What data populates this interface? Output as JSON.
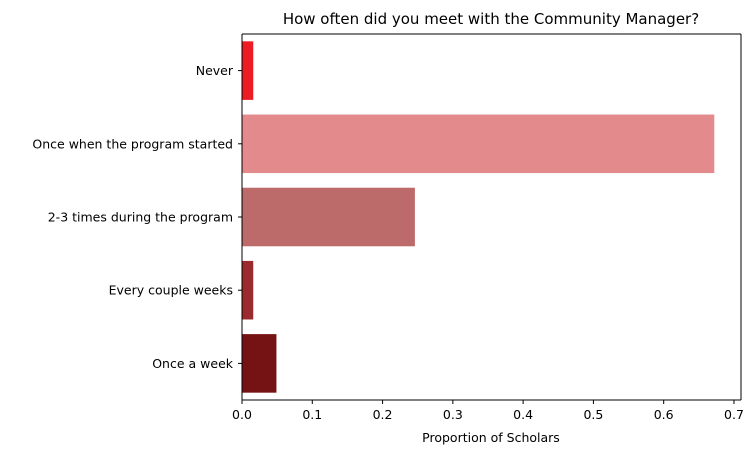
{
  "chart_data": {
    "type": "bar",
    "orientation": "horizontal",
    "title": "How often did you meet with the Community Manager?",
    "xlabel": "Proportion of Scholars",
    "ylabel": "",
    "categories": [
      "Never",
      "Once when the program started",
      "2-3 times during the program",
      "Every couple weeks",
      "Once a week"
    ],
    "values": [
      0.016,
      0.672,
      0.246,
      0.016,
      0.049
    ],
    "colors": [
      "#ec1c24",
      "#e38b8c",
      "#bd6a6a",
      "#9b2a2e",
      "#751213"
    ],
    "xlim": [
      0,
      0.71
    ],
    "xticks": [
      "0.0",
      "0.1",
      "0.2",
      "0.3",
      "0.4",
      "0.5",
      "0.6",
      "0.7"
    ],
    "grid": false,
    "legend": "none"
  }
}
